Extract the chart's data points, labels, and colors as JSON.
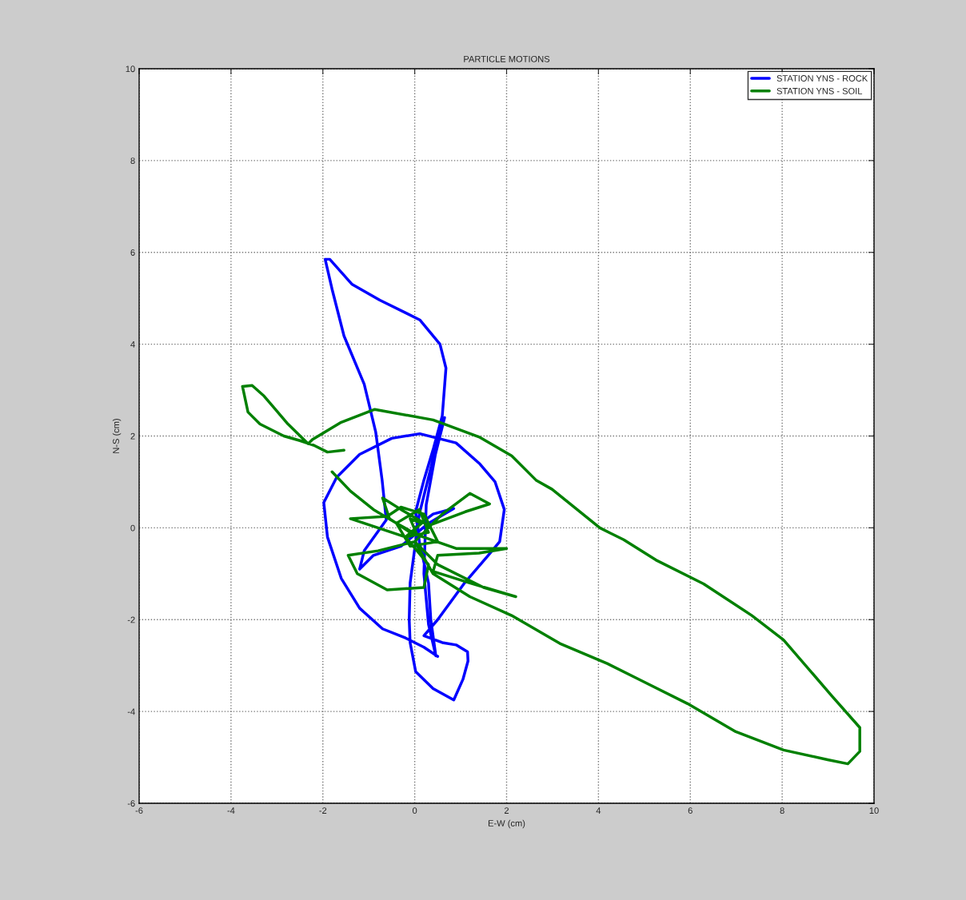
{
  "chart_data": {
    "type": "line",
    "title": "PARTICLE MOTIONS",
    "xlabel": "E-W (cm)",
    "ylabel": "N-S (cm)",
    "xlim": [
      -6,
      10
    ],
    "ylim": [
      -6,
      10
    ],
    "xticks": [
      -6,
      -4,
      -2,
      0,
      2,
      4,
      6,
      8,
      10
    ],
    "yticks": [
      -6,
      -4,
      -2,
      0,
      2,
      4,
      6,
      8,
      10
    ],
    "grid": true,
    "legend": "top right",
    "line_style": "solid",
    "marker": "none",
    "series": [
      {
        "name": "STATION YNS - ROCK",
        "color": "#0000ff",
        "x": [
          0,
          0.4,
          0.85,
          0.3,
          -0.3,
          -0.9,
          -1.2,
          -1.1,
          -0.62,
          -0.71,
          -0.85,
          -1.1,
          -1.54,
          -1.8,
          -1.95,
          -1.85,
          -1.37,
          -0.76,
          0.11,
          0.55,
          0.68,
          0.6,
          0.41,
          0.2,
          0.02,
          0.1,
          0.3,
          0.35,
          0.46,
          0.3,
          0.2,
          0.25,
          0.45,
          0.65,
          0.4,
          0.1,
          -0.1,
          -0.12,
          -0.1,
          0.02,
          0.4,
          0.85,
          1.05,
          1.16,
          1.15,
          0.9,
          0.6,
          0.2,
          0.5,
          1.07,
          1.6,
          1.85,
          1.95,
          1.75,
          1.42,
          0.9,
          0.11,
          -0.5,
          -1.2,
          -1.7,
          -1.98,
          -1.9,
          -1.6,
          -1.2,
          -0.7,
          -0.2,
          0.2,
          0.5
        ],
        "values": [
          0,
          0.3,
          0.42,
          0.1,
          -0.4,
          -0.6,
          -0.9,
          -0.5,
          0.17,
          1.04,
          2.09,
          3.13,
          4.18,
          5.2,
          5.85,
          5.85,
          5.31,
          4.96,
          4.53,
          4.0,
          3.48,
          2.44,
          1.74,
          1.04,
          0.35,
          -0.3,
          -1.2,
          -2.0,
          -2.79,
          -2.1,
          -1.0,
          0.5,
          1.6,
          2.4,
          1.5,
          0.3,
          -1.2,
          -2.0,
          -2.5,
          -3.13,
          -3.5,
          -3.75,
          -3.3,
          -2.9,
          -2.7,
          -2.55,
          -2.5,
          -2.35,
          -2.0,
          -1.22,
          -0.6,
          -0.3,
          0.4,
          1.0,
          1.39,
          1.85,
          2.05,
          1.95,
          1.6,
          1.1,
          0.55,
          -0.2,
          -1.1,
          -1.75,
          -2.2,
          -2.4,
          -2.6,
          -2.8
        ]
      },
      {
        "name": "STATION YNS - SOIL",
        "color": "#008000",
        "x": [
          -1.54,
          -1.9,
          -2.2,
          -2.5,
          -2.85,
          -3.37,
          -3.63,
          -3.75,
          -3.54,
          -3.28,
          -2.76,
          -2.32,
          -2.23,
          -1.6,
          -0.87,
          0.4,
          1.42,
          2.11,
          2.64,
          2.99,
          4.03,
          4.55,
          5.25,
          6.29,
          7.34,
          8.03,
          9.08,
          9.69,
          9.69,
          9.43,
          8.99,
          8.03,
          6.99,
          5.94,
          4.9,
          4.2,
          3.16,
          2.11,
          1.2,
          0.4,
          0,
          0.6,
          1.2,
          1.63,
          1.1,
          0.3,
          -0.3,
          -0.7,
          -0.55,
          -0.1,
          0.9,
          2.0,
          1.4,
          0.5,
          0.4,
          1.2,
          2.2,
          1.5,
          0.5,
          0,
          -0.8,
          -1.45,
          -1.25,
          -0.6,
          0.2,
          0.3,
          -0.2,
          -1.4,
          -0.6,
          -0.3,
          0.2,
          0.5,
          -0.1,
          -0.4,
          0.1,
          0.3,
          -0.2,
          0.15,
          -0.1,
          0.05,
          -0.4,
          -0.9,
          -1.4,
          -1.8
        ],
        "values": [
          1.69,
          1.65,
          1.8,
          1.9,
          2.0,
          2.26,
          2.52,
          3.08,
          3.1,
          2.87,
          2.26,
          1.83,
          1.92,
          2.3,
          2.58,
          2.35,
          1.97,
          1.57,
          1.04,
          0.84,
          0,
          -0.26,
          -0.7,
          -1.22,
          -1.91,
          -2.44,
          -3.66,
          -4.35,
          -4.87,
          -5.14,
          -5.05,
          -4.84,
          -4.44,
          -3.83,
          -3.31,
          -2.96,
          -2.52,
          -1.91,
          -1.5,
          -1.0,
          -0.3,
          0.3,
          0.75,
          0.52,
          0.35,
          0.05,
          0.4,
          0.65,
          0.2,
          -0.1,
          -0.45,
          -0.45,
          -0.55,
          -0.6,
          -0.95,
          -1.2,
          -1.5,
          -1.3,
          -0.8,
          -0.3,
          -0.5,
          -0.6,
          -1.0,
          -1.35,
          -1.3,
          -0.8,
          -0.2,
          0.2,
          0.25,
          0.45,
          0.3,
          -0.3,
          -0.4,
          0.1,
          0.4,
          -0.1,
          -0.2,
          0.1,
          0.2,
          -0.15,
          0.1,
          0.4,
          0.8,
          1.22
        ]
      }
    ]
  }
}
